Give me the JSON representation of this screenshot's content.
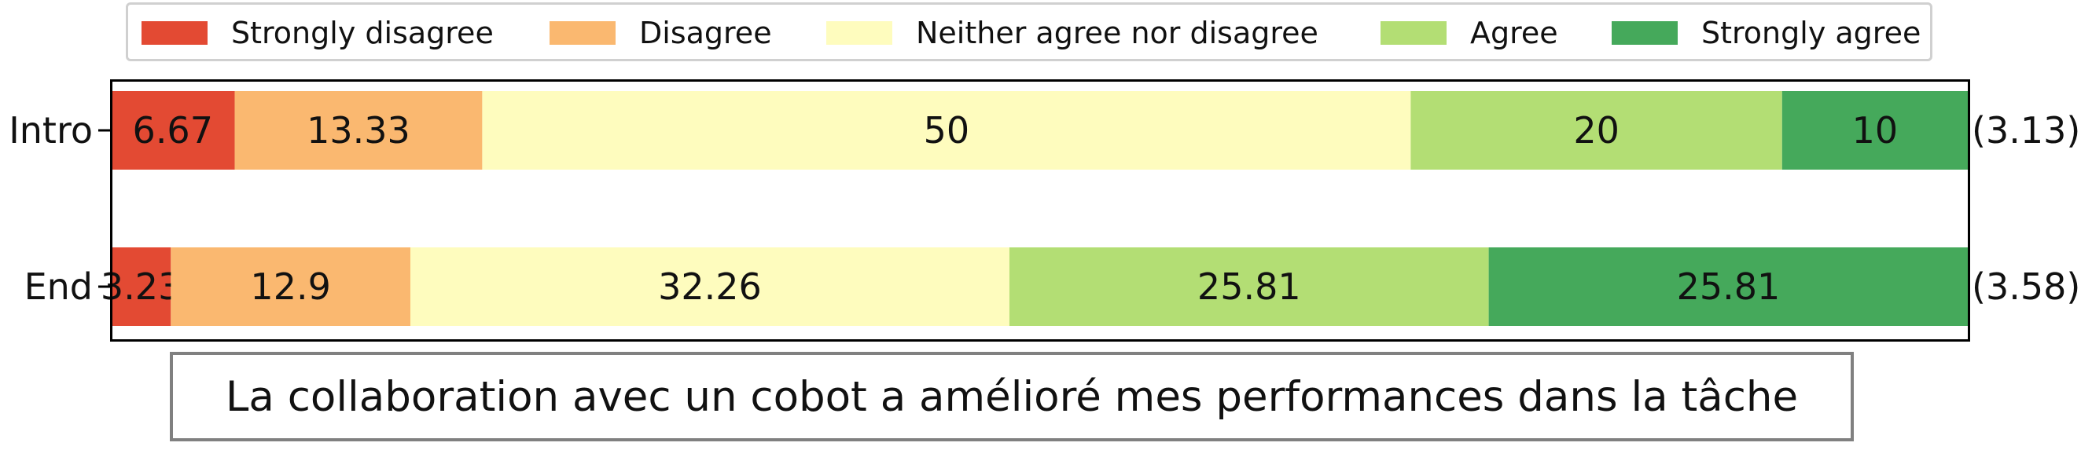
{
  "chart_data": {
    "type": "bar",
    "orientation": "horizontal",
    "stacked": true,
    "title": "La collaboration avec un cobot a amélioré mes performances dans la tâche",
    "categories": [
      "Intro",
      "End"
    ],
    "series": [
      {
        "name": "Strongly disagree",
        "values": [
          6.67,
          3.23
        ],
        "labels": [
          "6.67",
          "3.23"
        ],
        "color": "#e34a33"
      },
      {
        "name": "Disagree",
        "values": [
          13.33,
          12.9
        ],
        "labels": [
          "13.33",
          "12.9"
        ],
        "color": "#fab870"
      },
      {
        "name": "Neither agree nor disagree",
        "values": [
          50,
          32.26
        ],
        "labels": [
          "50",
          "32.26"
        ],
        "color": "#fefcbe"
      },
      {
        "name": "Agree",
        "values": [
          20,
          25.81
        ],
        "labels": [
          "20",
          "25.81"
        ],
        "color": "#b3de74"
      },
      {
        "name": "Strongly agree",
        "values": [
          10,
          25.81
        ],
        "labels": [
          "10",
          "25.81"
        ],
        "color": "#45a95b"
      }
    ],
    "row_annotations": [
      "(3.13)",
      "(3.58)"
    ],
    "xlim": [
      0,
      100
    ],
    "grid": false,
    "legend_position": "top"
  }
}
